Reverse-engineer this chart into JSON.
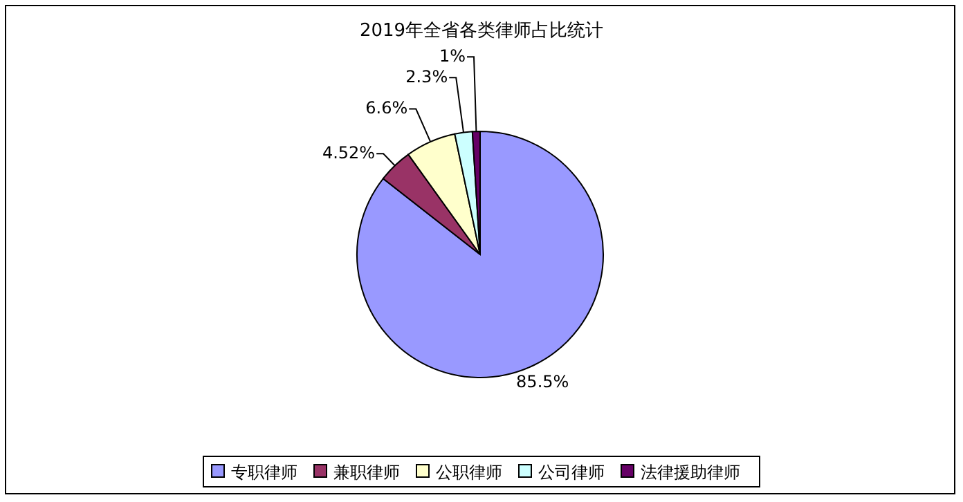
{
  "chart_data": {
    "type": "pie",
    "title": "2019年全省各类律师占比统计",
    "categories": [
      "专职律师",
      "兼职律师",
      "公职律师",
      "公司律师",
      "法律援助律师"
    ],
    "values": [
      85.5,
      4.52,
      6.6,
      2.3,
      1
    ],
    "value_labels": [
      "85.5%",
      "4.52%",
      "6.6%",
      "2.3%",
      "1%"
    ],
    "colors": [
      "#9999ff",
      "#993366",
      "#ffffcc",
      "#ccffff",
      "#660066"
    ],
    "legend": "bottom"
  }
}
